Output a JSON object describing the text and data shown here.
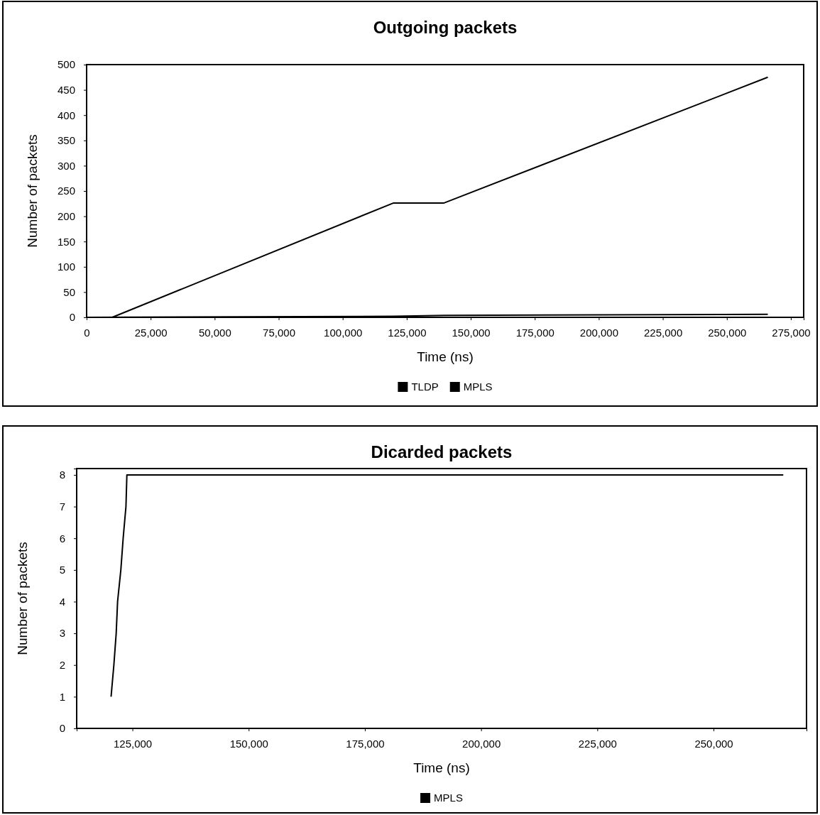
{
  "chart_data": [
    {
      "type": "line",
      "title": "Outgoing packets",
      "xlabel": "Time (ns)",
      "ylabel": "Number of packets",
      "xlim": [
        0,
        280000
      ],
      "xticks": [
        0,
        {
          "value": 25000,
          "label": "25,000"
        },
        {
          "value": 50000,
          "label": "50,000"
        },
        {
          "value": 75000,
          "label": "75,000"
        },
        {
          "value": 100000,
          "label": "100,000"
        },
        {
          "value": 125000,
          "label": "125,000"
        },
        {
          "value": 150000,
          "label": "150,000"
        },
        {
          "value": 175000,
          "label": "175,000"
        },
        {
          "value": 200000,
          "label": "200,000"
        },
        {
          "value": 225000,
          "label": "225,000"
        },
        {
          "value": 250000,
          "label": "250,000"
        },
        {
          "value": 275000,
          "label": "275,000"
        }
      ],
      "ylim": [
        0,
        500
      ],
      "yticks": [
        0,
        50,
        100,
        150,
        200,
        250,
        300,
        350,
        400,
        450,
        500
      ],
      "legend": "bottom",
      "series": [
        {
          "name": "TLDP",
          "color": "#000000",
          "x": [
            0,
            120000,
            140000,
            266000
          ],
          "values": [
            0,
            2,
            4,
            6
          ]
        },
        {
          "name": "MPLS",
          "color": "#000000",
          "x": [
            0,
            10000,
            119700,
            139400,
            266000
          ],
          "values": [
            0,
            0,
            226,
            226,
            475
          ]
        }
      ]
    },
    {
      "type": "line",
      "title": "Dicarded packets",
      "xlabel": "Time (ns)",
      "ylabel": "Number of packets",
      "xlim": [
        113000,
        270000
      ],
      "xticks": [
        {
          "value": 125000,
          "label": "125,000"
        },
        {
          "value": 150000,
          "label": "150,000"
        },
        {
          "value": 175000,
          "label": "175,000"
        },
        {
          "value": 200000,
          "label": "200,000"
        },
        {
          "value": 225000,
          "label": "225,000"
        },
        {
          "value": 250000,
          "label": "250,000"
        }
      ],
      "ylim": [
        0,
        8.2
      ],
      "yticks": [
        0,
        1,
        2,
        3,
        4,
        5,
        6,
        7,
        8
      ],
      "legend": "bottom",
      "series": [
        {
          "name": "MPLS",
          "color": "#000000",
          "x": [
            120400,
            121000,
            121500,
            121800,
            122500,
            123000,
            123600,
            123800,
            265000
          ],
          "values": [
            1,
            2,
            3,
            4,
            5,
            6,
            7,
            8,
            8
          ]
        }
      ]
    }
  ]
}
